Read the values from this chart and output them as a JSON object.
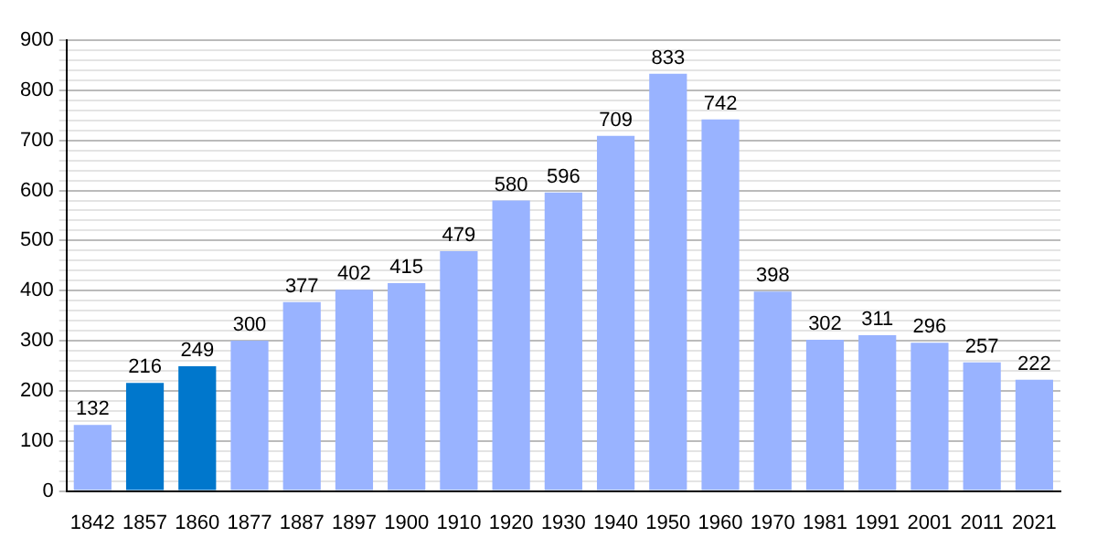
{
  "chart_data": {
    "type": "bar",
    "categories": [
      "1842",
      "1857",
      "1860",
      "1877",
      "1887",
      "1897",
      "1900",
      "1910",
      "1920",
      "1930",
      "1940",
      "1950",
      "1960",
      "1970",
      "1981",
      "1991",
      "2001",
      "2011",
      "2021"
    ],
    "values": [
      132,
      216,
      249,
      300,
      377,
      402,
      415,
      479,
      580,
      596,
      709,
      833,
      742,
      398,
      302,
      311,
      296,
      257,
      222
    ],
    "colors": [
      "#99b3ff",
      "#0077cc",
      "#0077cc",
      "#99b3ff",
      "#99b3ff",
      "#99b3ff",
      "#99b3ff",
      "#99b3ff",
      "#99b3ff",
      "#99b3ff",
      "#99b3ff",
      "#99b3ff",
      "#99b3ff",
      "#99b3ff",
      "#99b3ff",
      "#99b3ff",
      "#99b3ff",
      "#99b3ff",
      "#99b3ff"
    ],
    "data_labels": true,
    "ylim": [
      0,
      900
    ],
    "yticks": [
      0,
      {
        "value": 20,
        "label": null
      },
      {
        "value": 40,
        "label": null
      },
      {
        "value": 60,
        "label": null
      },
      {
        "value": 80,
        "label": null
      },
      100,
      {
        "value": 120,
        "label": null
      },
      {
        "value": 140,
        "label": null
      },
      {
        "value": 160,
        "label": null
      },
      {
        "value": 180,
        "label": null
      },
      200,
      {
        "value": 220,
        "label": null
      },
      {
        "value": 240,
        "label": null
      },
      {
        "value": 260,
        "label": null
      },
      {
        "value": 280,
        "label": null
      },
      300,
      {
        "value": 320,
        "label": null
      },
      {
        "value": 340,
        "label": null
      },
      {
        "value": 360,
        "label": null
      },
      {
        "value": 380,
        "label": null
      },
      400,
      {
        "value": 420,
        "label": null
      },
      {
        "value": 440,
        "label": null
      },
      {
        "value": 460,
        "label": null
      },
      {
        "value": 480,
        "label": null
      },
      500,
      {
        "value": 520,
        "label": null
      },
      {
        "value": 540,
        "label": null
      },
      {
        "value": 560,
        "label": null
      },
      {
        "value": 580,
        "label": null
      },
      600,
      {
        "value": 620,
        "label": null
      },
      {
        "value": 640,
        "label": null
      },
      {
        "value": 660,
        "label": null
      },
      {
        "value": 680,
        "label": null
      },
      700,
      {
        "value": 720,
        "label": null
      },
      {
        "value": 740,
        "label": null
      },
      {
        "value": 760,
        "label": null
      },
      {
        "value": 780,
        "label": null
      },
      800,
      {
        "value": 820,
        "label": null
      },
      {
        "value": 840,
        "label": null
      },
      {
        "value": 860,
        "label": null
      },
      {
        "value": 880,
        "label": null
      },
      900
    ],
    "grid": "y",
    "legend": false
  }
}
